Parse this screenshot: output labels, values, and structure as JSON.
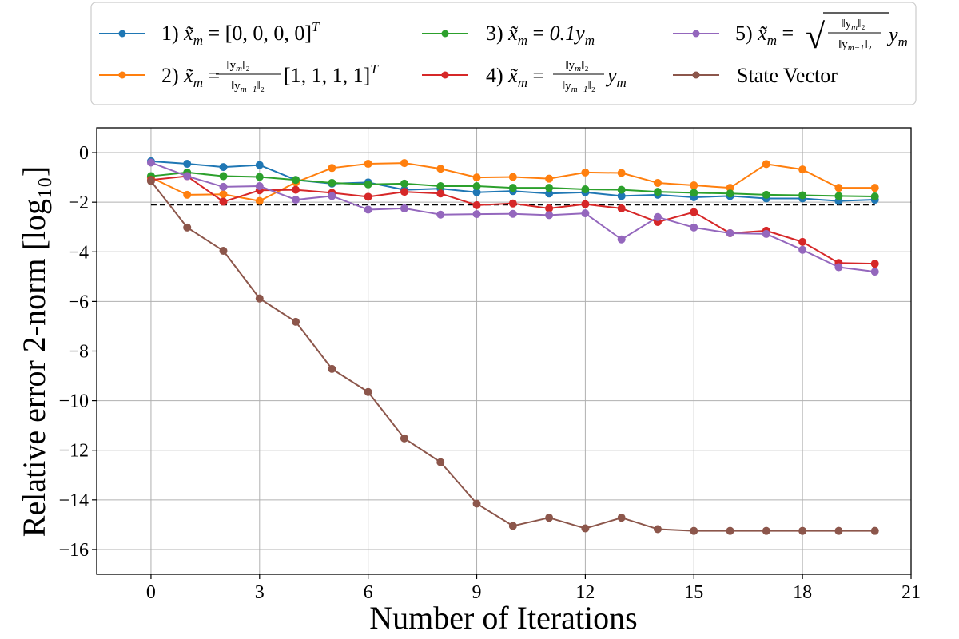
{
  "chart_data": {
    "type": "line",
    "title": "",
    "xlabel": "Number of Iterations",
    "ylabel": "Relative error 2-norm [log₁₀]",
    "xlim": [
      -1.5,
      21
    ],
    "ylim": [
      -17,
      1
    ],
    "xticks": [
      0,
      3,
      6,
      9,
      12,
      15,
      18,
      21
    ],
    "yticks": [
      0,
      -2,
      -4,
      -6,
      -8,
      -10,
      -12,
      -14,
      -16
    ],
    "xtick_labels": [
      "0",
      "3",
      "6",
      "9",
      "12",
      "15",
      "18",
      "21"
    ],
    "ytick_labels": [
      "0",
      "−2",
      "−4",
      "−6",
      "−8",
      "−10",
      "−12",
      "−14",
      "−16"
    ],
    "grid": true,
    "legend_position": "top",
    "reference_line": {
      "y": -2.1,
      "x_start": 0,
      "x_end": 20,
      "style": "dashed",
      "color": "#000000"
    },
    "x": [
      0,
      1,
      2,
      3,
      4,
      5,
      6,
      7,
      8,
      9,
      10,
      11,
      12,
      13,
      14,
      15,
      16,
      17,
      18,
      19,
      20
    ],
    "series": [
      {
        "name": "1) x̃m = [0,0,0,0]ᵀ",
        "color": "#1f77b4",
        "values": [
          -0.35,
          -0.45,
          -0.58,
          -0.5,
          -1.1,
          -1.25,
          -1.2,
          -1.5,
          -1.45,
          -1.6,
          -1.55,
          -1.65,
          -1.6,
          -1.75,
          -1.7,
          -1.8,
          -1.75,
          -1.85,
          -1.85,
          -1.95,
          -1.9
        ]
      },
      {
        "name": "2) x̃m = ‖ym‖₂/‖ym−1‖₂ [1,1,1,1]ᵀ",
        "color": "#ff7f0e",
        "values": [
          -1.0,
          -1.7,
          -1.68,
          -1.95,
          -1.2,
          -0.62,
          -0.45,
          -0.42,
          -0.65,
          -1.0,
          -0.98,
          -1.05,
          -0.8,
          -0.82,
          -1.22,
          -1.32,
          -1.42,
          -0.46,
          -0.68,
          -1.42,
          -1.42
        ]
      },
      {
        "name": "3) x̃m = 0.1ym",
        "color": "#2ca02c",
        "values": [
          -0.95,
          -0.8,
          -0.95,
          -0.98,
          -1.1,
          -1.22,
          -1.28,
          -1.25,
          -1.35,
          -1.35,
          -1.42,
          -1.42,
          -1.48,
          -1.5,
          -1.58,
          -1.62,
          -1.65,
          -1.7,
          -1.72,
          -1.75,
          -1.77
        ]
      },
      {
        "name": "4) x̃m = ‖ym‖₂/‖ym−1‖₂ ym",
        "color": "#d62728",
        "values": [
          -1.1,
          -0.95,
          -1.98,
          -1.52,
          -1.5,
          -1.62,
          -1.78,
          -1.58,
          -1.65,
          -2.12,
          -2.05,
          -2.25,
          -2.08,
          -2.25,
          -2.8,
          -2.4,
          -3.25,
          -3.15,
          -3.6,
          -4.45,
          -4.48
        ]
      },
      {
        "name": "5) x̃m = √(‖ym‖₂/‖ym−1‖₂) ym",
        "color": "#9467bd",
        "values": [
          -0.4,
          -0.95,
          -1.38,
          -1.35,
          -1.9,
          -1.75,
          -2.3,
          -2.25,
          -2.5,
          -2.48,
          -2.47,
          -2.52,
          -2.45,
          -3.5,
          -2.6,
          -3.02,
          -3.25,
          -3.28,
          -3.92,
          -4.62,
          -4.8
        ]
      },
      {
        "name": "State Vector",
        "color": "#8c564b",
        "values": [
          -1.15,
          -3.02,
          -3.96,
          -5.88,
          -6.82,
          -8.72,
          -9.65,
          -11.52,
          -12.48,
          -14.15,
          -15.05,
          -14.72,
          -15.15,
          -14.72,
          -15.18,
          -15.25,
          -15.25,
          -15.25,
          -15.25,
          -15.25,
          -15.25
        ]
      }
    ]
  },
  "legend": {
    "items": [
      {
        "prefix": "1) ",
        "var": "x̃",
        "sub": "m",
        "eq": " = ",
        "rhs": "[0, 0, 0, 0]",
        "sup": "T"
      },
      {
        "prefix": "2) ",
        "var": "x̃",
        "sub": "m",
        "eq": " = ",
        "num": "‖y",
        "num_sub": "m",
        "num_end": "‖₂",
        "den": "‖y",
        "den_sub": "m−1",
        "den_end": "‖₂",
        "rhs": "[1, 1, 1, 1]",
        "sup": "T"
      },
      {
        "prefix": "3) ",
        "var": "x̃",
        "sub": "m",
        "eq": " = ",
        "rhs": "0.1y",
        "rhs_sub": "m"
      },
      {
        "prefix": "4) ",
        "var": "x̃",
        "sub": "m",
        "eq": " = ",
        "num": "‖y",
        "num_sub": "m",
        "num_end": "‖₂",
        "den": "‖y",
        "den_sub": "m−1",
        "den_end": "‖₂",
        "rhs": "y",
        "rhs_sub": "m"
      },
      {
        "prefix": "5) ",
        "var": "x̃",
        "sub": "m",
        "eq": " = ",
        "num": "‖y",
        "num_sub": "m",
        "num_end": "‖₂",
        "den": "‖y",
        "den_sub": "m−1",
        "den_end": "‖₂",
        "rhs": "y",
        "rhs_sub": "m",
        "sqrt": "√"
      },
      {
        "label": "State Vector"
      }
    ]
  }
}
